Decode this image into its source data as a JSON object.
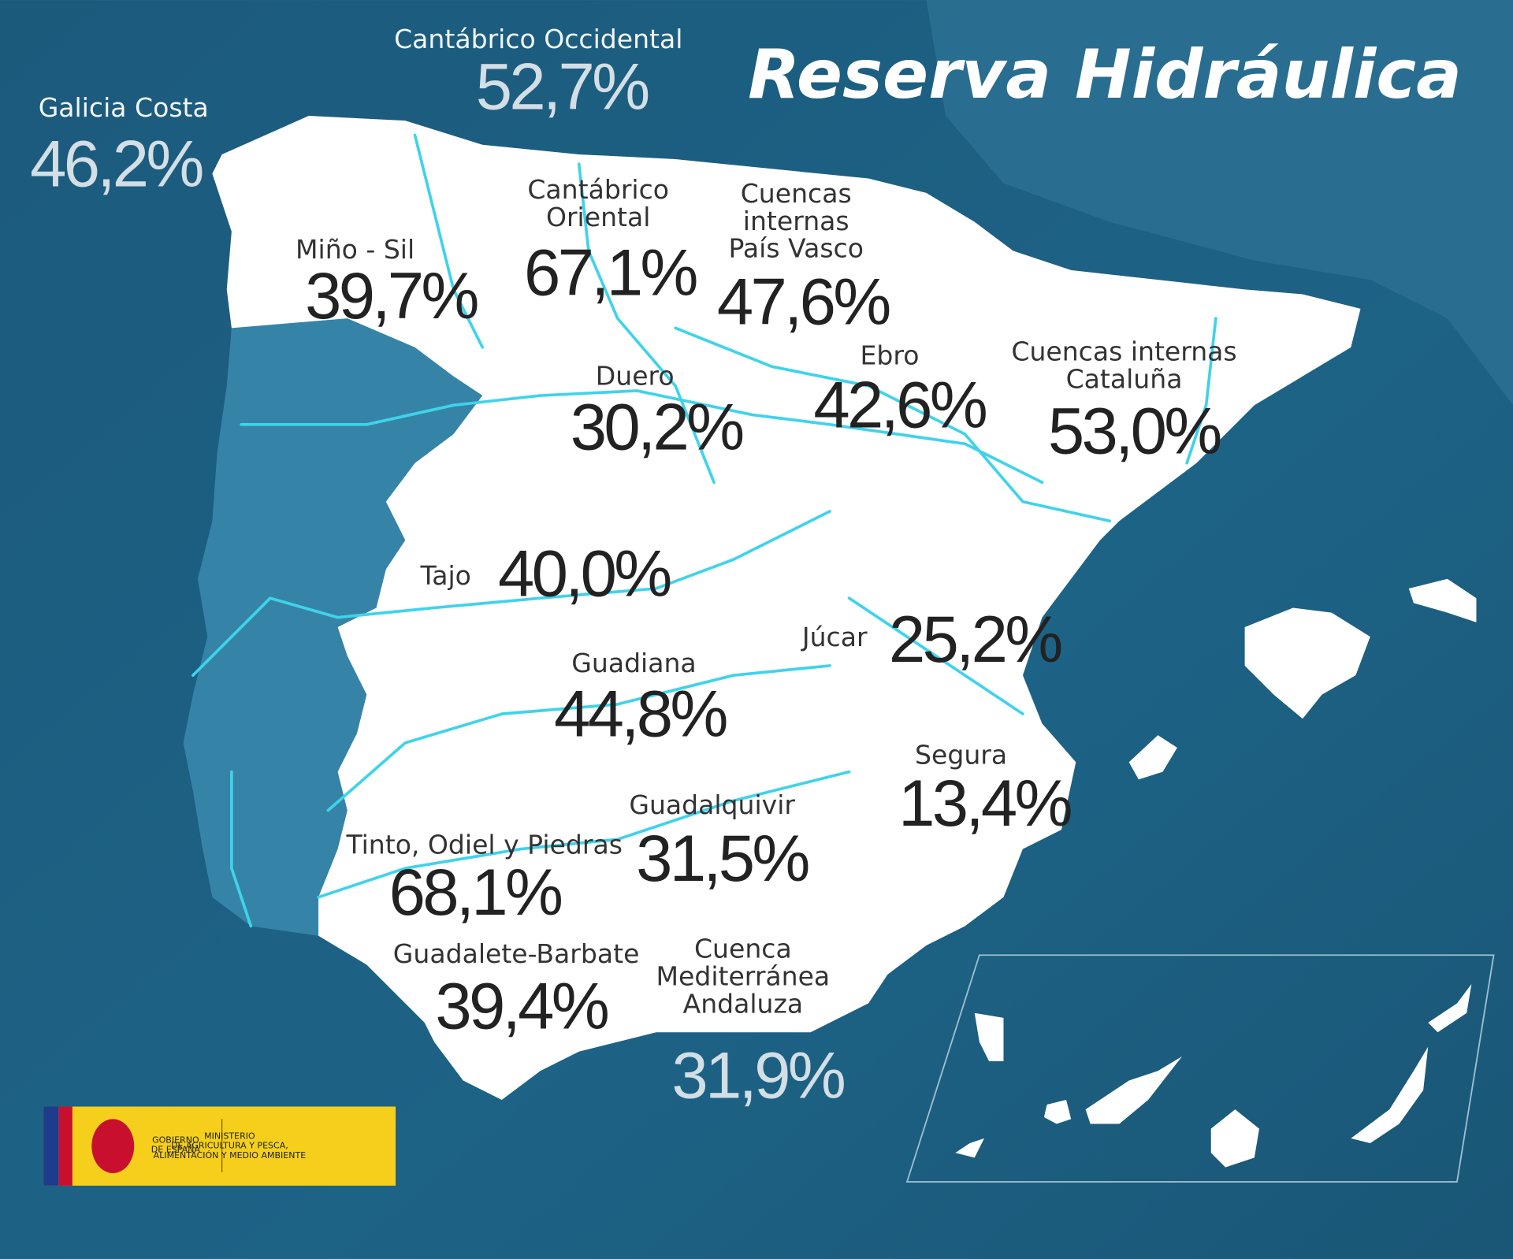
{
  "title": "Reserva Hidráulica",
  "basins": [
    {
      "name": [
        "Galicia Costa"
      ],
      "value": "46,2%"
    },
    {
      "name": [
        "Cantábrico Occidental"
      ],
      "value": "52,7%"
    },
    {
      "name": [
        "Miño - Sil"
      ],
      "value": "39,7%"
    },
    {
      "name": [
        "Cantábrico",
        "Oriental"
      ],
      "value": "67,1%"
    },
    {
      "name": [
        "Cuencas",
        "internas",
        "País Vasco"
      ],
      "value": "47,6%"
    },
    {
      "name": [
        "Ebro"
      ],
      "value": "42,6%"
    },
    {
      "name": [
        "Cuencas internas",
        "Cataluña"
      ],
      "value": "53,0%"
    },
    {
      "name": [
        "Duero"
      ],
      "value": "30,2%"
    },
    {
      "name": [
        "Tajo"
      ],
      "value": "40,0%"
    },
    {
      "name": [
        "Júcar"
      ],
      "value": "25,2%"
    },
    {
      "name": [
        "Guadiana"
      ],
      "value": "44,8%"
    },
    {
      "name": [
        "Segura"
      ],
      "value": "13,4%"
    },
    {
      "name": [
        "Guadalquivir"
      ],
      "value": "31,5%"
    },
    {
      "name": [
        "Tinto, Odiel y Piedras"
      ],
      "value": "68,1%"
    },
    {
      "name": [
        "Guadalete-Barbate"
      ],
      "value": "39,4%"
    },
    {
      "name": [
        "Cuenca",
        "Mediterránea",
        "Andaluza"
      ],
      "value": "31,9%"
    }
  ],
  "logo": {
    "government": [
      "GOBIERNO",
      "DE ESPAÑA"
    ],
    "ministry": [
      "MINISTERIO",
      "DE AGRICULTURA Y PESCA,",
      "ALIMENTACIÓN Y MEDIO AMBIENTE"
    ]
  }
}
